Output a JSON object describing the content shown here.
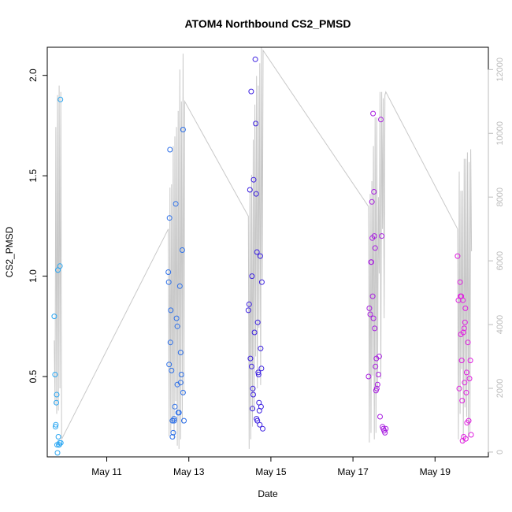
{
  "chart_data": {
    "type": "scatter",
    "title": "ATOM4 Northbound CS2_PMSD",
    "xlabel": "Date",
    "ylabel": "CS2_PMSD",
    "x_tick_labels": [
      "May 11",
      "May 13",
      "May 15",
      "May 17",
      "May 19"
    ],
    "x_ticks": [
      11,
      13,
      15,
      17,
      19
    ],
    "xlim": [
      9.55,
      20.3
    ],
    "ylim": [
      0.1,
      2.14
    ],
    "y_ticks": [
      0.5,
      1.0,
      1.5,
      2.0
    ],
    "y_tick_labels": [
      "0.5",
      "1.0",
      "1.5",
      "2.0"
    ],
    "right_axis": {
      "ylim": [
        -150,
        12700
      ],
      "ticks": [
        0,
        2000,
        4000,
        6000,
        8000,
        10000,
        12000
      ],
      "tick_labels": [
        "0",
        "2000",
        "4000",
        "6000",
        "8000",
        "10000",
        "12000"
      ],
      "color": "#bbbbbb"
    },
    "grid": false,
    "colors": {
      "day10": "#2aa6f2",
      "day12": "#2c6fe8",
      "day14": "#3a1ee0",
      "day17": "#a81ee0",
      "day19": "#e01ee0",
      "line": "#c8c8c8",
      "frame": "#000000"
    },
    "series": [
      {
        "color_key": "day10",
        "x": [
          9.72,
          9.74,
          9.75,
          9.76,
          9.77,
          9.78,
          9.79,
          9.8,
          9.81,
          9.82,
          9.83,
          9.84,
          9.85,
          9.86,
          9.87,
          9.88
        ],
        "y": [
          0.8,
          0.51,
          0.25,
          0.26,
          0.37,
          0.41,
          0.16,
          0.12,
          1.03,
          0.2,
          0.16,
          0.16,
          0.17,
          1.05,
          1.88,
          0.17
        ]
      },
      {
        "color_key": "day12",
        "x": [
          12.5,
          12.51,
          12.52,
          12.53,
          12.54,
          12.55,
          12.56,
          12.58,
          12.6,
          12.62,
          12.64,
          12.66,
          12.68,
          12.7,
          12.72,
          12.74,
          12.76,
          12.78,
          12.8,
          12.82,
          12.84,
          12.86
        ],
        "y": [
          1.02,
          0.97,
          0.56,
          1.29,
          1.63,
          0.67,
          0.83,
          0.53,
          0.2,
          0.22,
          0.28,
          0.35,
          1.36,
          0.79,
          0.75,
          0.32,
          0.32,
          0.95,
          0.62,
          0.51,
          1.13,
          1.73
        ]
      },
      {
        "color_key": "day12",
        "x": [
          12.6,
          12.64,
          12.72,
          12.8,
          12.86,
          12.88
        ],
        "y": [
          0.28,
          0.29,
          0.46,
          0.47,
          0.42,
          0.28
        ]
      },
      {
        "color_key": "day14",
        "x": [
          14.45,
          14.47,
          14.49,
          14.5,
          14.52,
          14.53,
          14.54,
          14.55,
          14.56,
          14.57,
          14.58,
          14.6,
          14.62,
          14.63,
          14.64,
          14.65,
          14.66,
          14.67,
          14.68,
          14.69,
          14.7,
          14.71,
          14.72,
          14.73,
          14.74,
          14.75,
          14.76,
          14.77,
          14.78,
          14.8
        ],
        "y": [
          0.83,
          0.86,
          1.43,
          0.59,
          1.92,
          0.55,
          1.0,
          0.34,
          0.44,
          0.41,
          1.48,
          0.72,
          2.08,
          1.76,
          1.41,
          0.29,
          1.12,
          0.28,
          0.77,
          0.52,
          0.51,
          0.37,
          0.33,
          0.26,
          1.1,
          0.64,
          0.35,
          0.54,
          0.97,
          0.24
        ]
      },
      {
        "color_key": "day17",
        "x": [
          17.38,
          17.4,
          17.42,
          17.44,
          17.45,
          17.46,
          17.47,
          17.48,
          17.49,
          17.5,
          17.51,
          17.52,
          17.53,
          17.54,
          17.55,
          17.56,
          17.57,
          17.58,
          17.6,
          17.62,
          17.64,
          17.66,
          17.68,
          17.7,
          17.72,
          17.74,
          17.76,
          17.78,
          17.8
        ],
        "y": [
          0.5,
          0.84,
          0.81,
          1.07,
          1.07,
          1.37,
          1.19,
          0.9,
          1.81,
          0.79,
          1.42,
          1.2,
          0.74,
          1.14,
          0.55,
          0.43,
          0.59,
          0.44,
          0.46,
          0.51,
          0.6,
          0.3,
          1.78,
          1.2,
          0.25,
          0.24,
          0.23,
          0.22,
          0.24
        ]
      },
      {
        "color_key": "day19",
        "x": [
          19.55,
          19.57,
          19.59,
          19.61,
          19.62,
          19.63,
          19.64,
          19.65,
          19.66,
          19.67,
          19.68,
          19.69,
          19.7,
          19.71,
          19.72,
          19.73,
          19.74,
          19.75,
          19.76,
          19.77,
          19.78,
          19.8,
          19.82,
          19.84,
          19.86,
          19.88
        ],
        "y": [
          1.1,
          0.88,
          0.44,
          0.97,
          0.9,
          0.71,
          0.9,
          0.58,
          0.38,
          0.18,
          0.88,
          0.72,
          0.2,
          0.74,
          0.47,
          0.77,
          0.84,
          0.19,
          0.42,
          0.52,
          0.27,
          0.67,
          0.28,
          0.49,
          0.58,
          0.21
        ]
      }
    ],
    "line_series": {
      "axis": "right",
      "x": [
        9.72,
        9.74,
        9.76,
        9.78,
        9.8,
        9.82,
        9.84,
        9.86,
        9.88,
        9.9,
        12.5,
        12.52,
        12.54,
        12.56,
        12.58,
        12.6,
        12.62,
        12.64,
        12.66,
        12.68,
        12.7,
        12.72,
        12.74,
        12.76,
        12.78,
        12.8,
        12.82,
        12.84,
        12.86,
        12.88,
        12.9,
        14.45,
        14.47,
        14.49,
        14.51,
        14.53,
        14.55,
        14.57,
        14.59,
        14.61,
        14.63,
        14.65,
        14.67,
        14.69,
        14.71,
        14.73,
        14.75,
        14.77,
        14.79,
        14.81,
        17.38,
        17.4,
        17.42,
        17.44,
        17.46,
        17.48,
        17.5,
        17.52,
        17.54,
        17.56,
        17.58,
        17.6,
        17.62,
        17.64,
        17.66,
        17.68,
        17.7,
        17.72,
        17.74,
        17.76,
        17.78,
        17.8,
        19.55,
        19.57,
        19.59,
        19.61,
        19.63,
        19.65,
        19.67,
        19.69,
        19.71,
        19.73,
        19.75,
        19.77,
        19.79,
        19.81,
        19.83,
        19.85,
        19.87,
        19.89
      ],
      "y": [
        3500,
        1500,
        10200,
        1200,
        11200,
        1300,
        11500,
        2000,
        11300,
        400,
        7000,
        500,
        8300,
        600,
        8400,
        900,
        9600,
        400,
        9900,
        1600,
        10200,
        200,
        10700,
        100,
        12000,
        400,
        11000,
        900,
        12500,
        1800,
        11000,
        7400,
        100,
        8200,
        400,
        8700,
        800,
        9800,
        1300,
        10900,
        3000,
        11800,
        2000,
        11500,
        3900,
        12200,
        2100,
        12700,
        5400,
        12600,
        7700,
        300,
        8100,
        600,
        8500,
        2400,
        9600,
        400,
        10500,
        600,
        10500,
        2000,
        8000,
        5600,
        11300,
        2300,
        11300,
        7000,
        11100,
        4200,
        11200,
        11300,
        7000,
        400,
        8800,
        1200,
        8200,
        2600,
        8200,
        300,
        9200,
        1400,
        9200,
        1100,
        9400,
        400,
        9100,
        600,
        9500,
        6300
      ]
    }
  }
}
